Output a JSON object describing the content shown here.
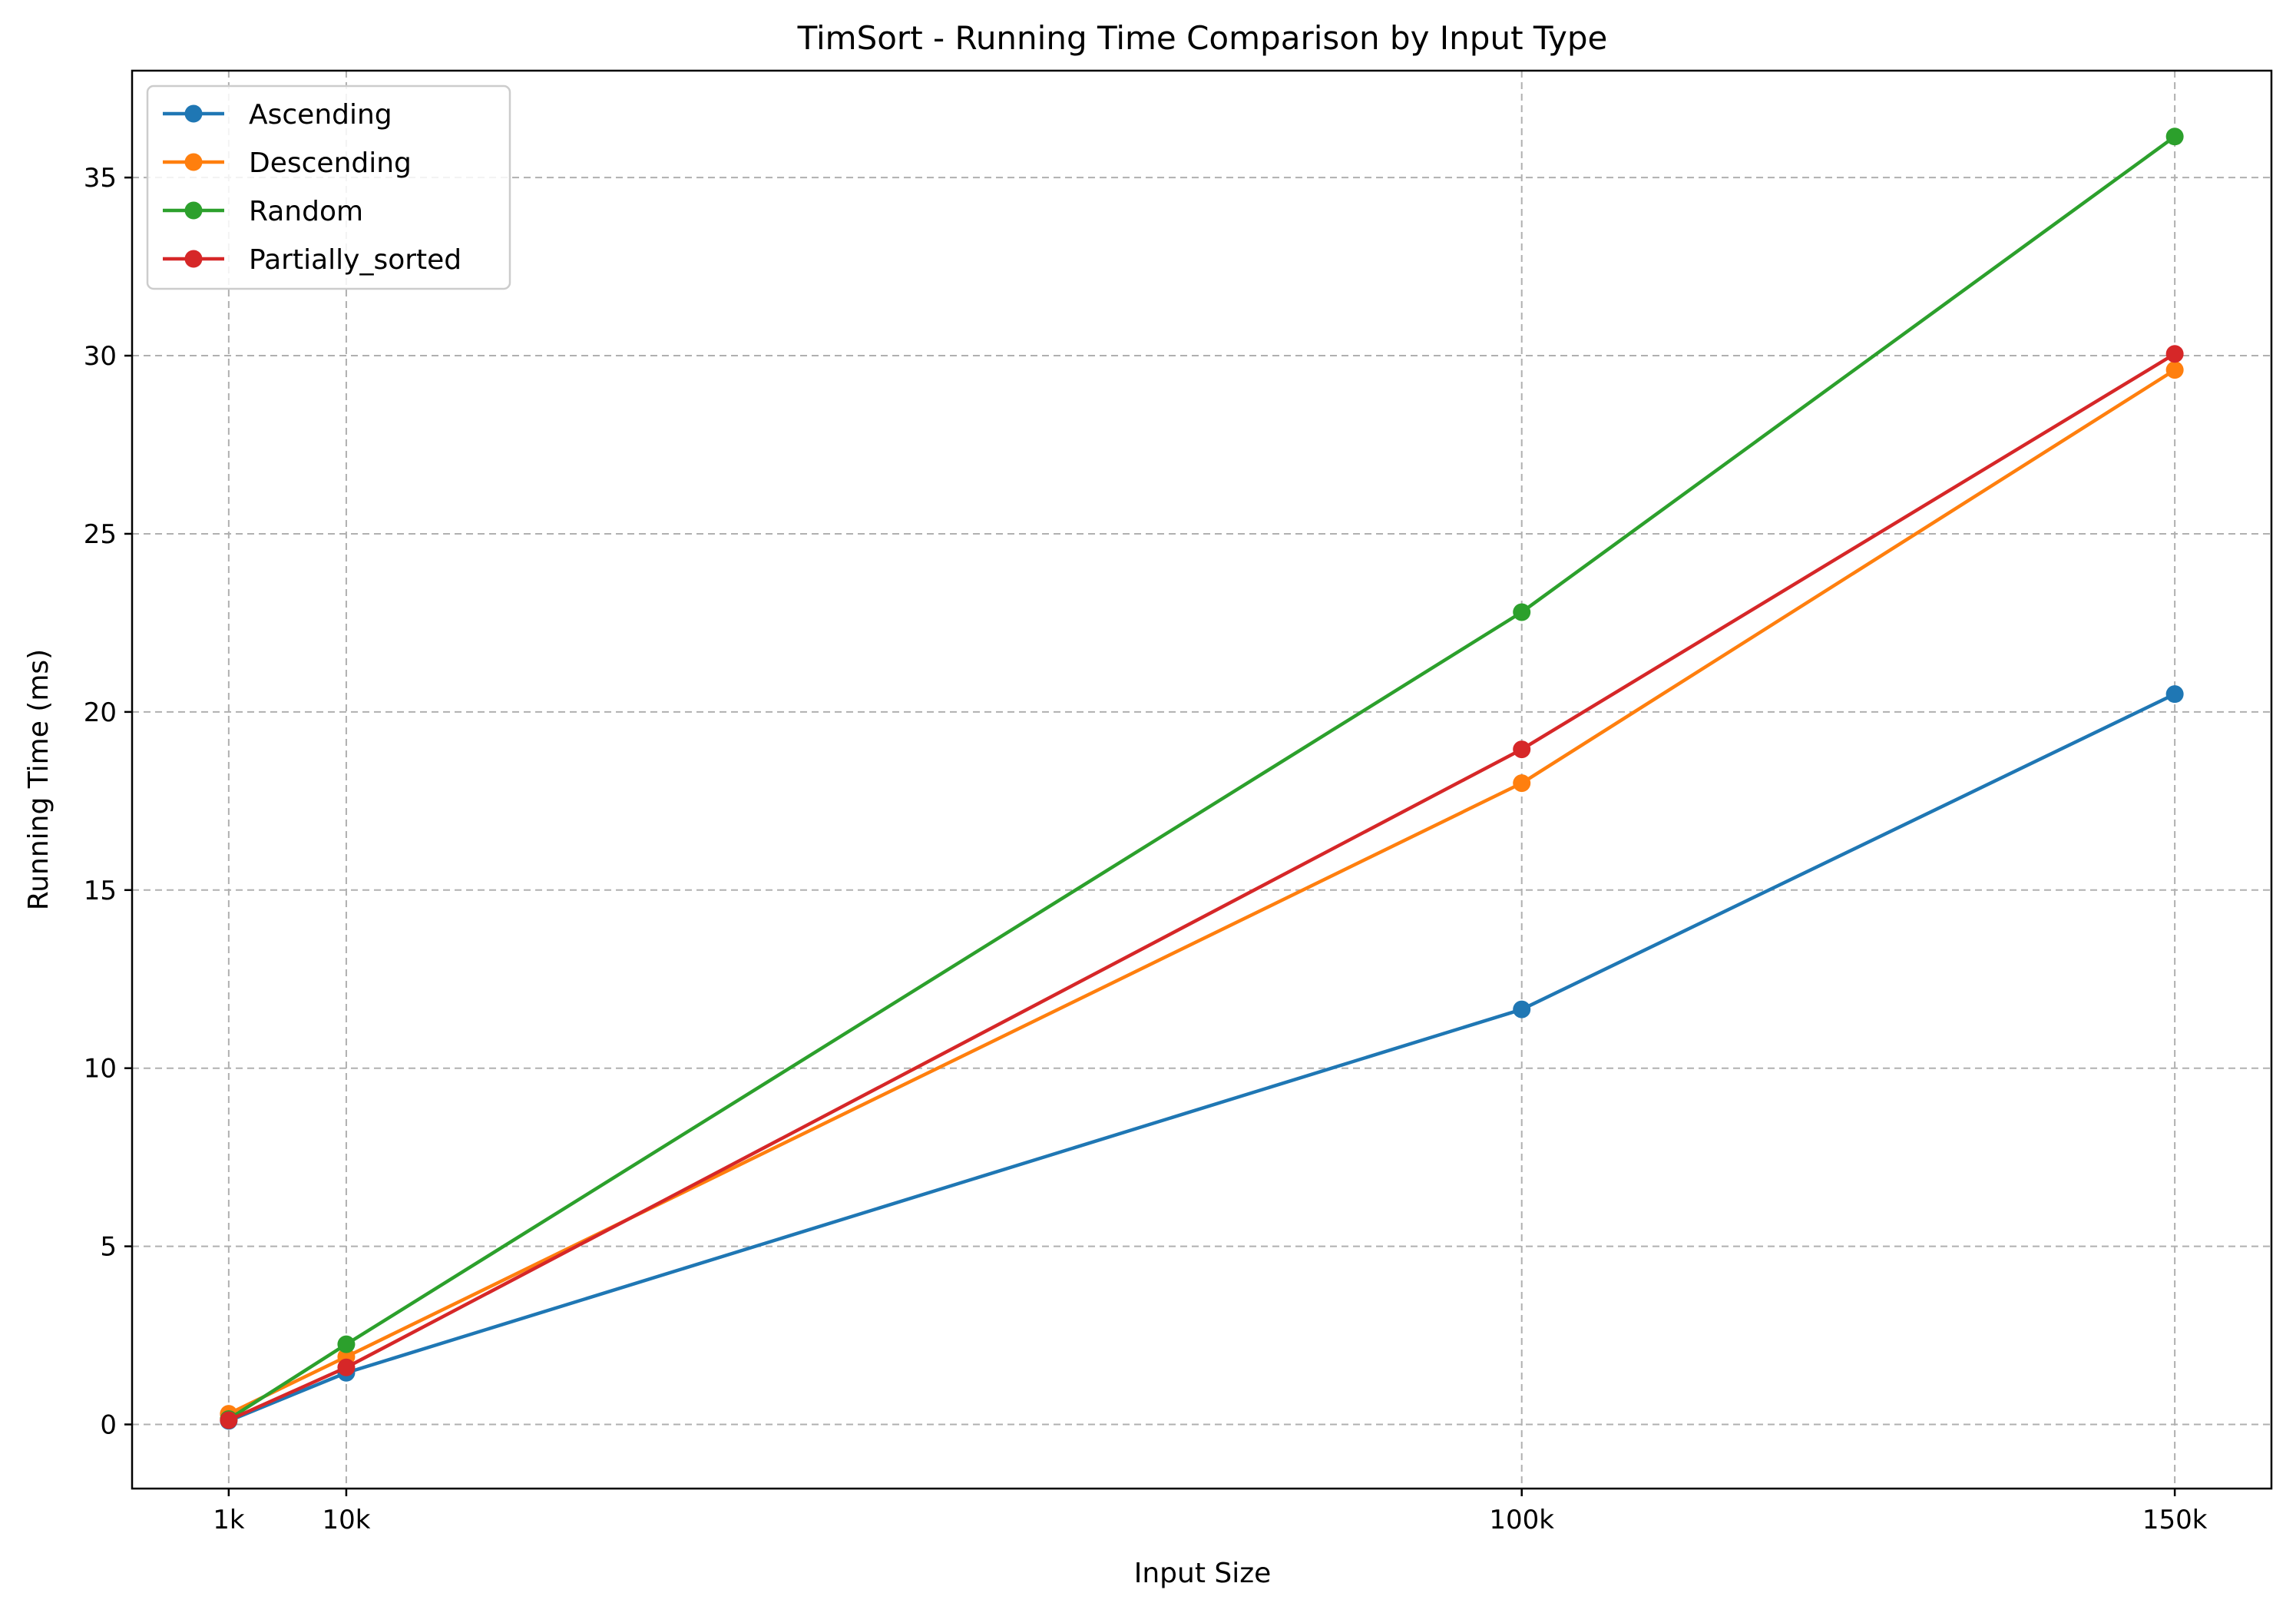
{
  "chart_data": {
    "type": "line",
    "title": "TimSort - Running Time Comparison by Input Type",
    "xlabel": "Input Size",
    "ylabel": "Running Time (ms)",
    "x": [
      1000,
      10000,
      100000,
      150000
    ],
    "xtick_labels": [
      "1k",
      "10k",
      "100k",
      "150k"
    ],
    "yticks": [
      0,
      5,
      10,
      15,
      20,
      25,
      30,
      35
    ],
    "xlim": [
      -6400,
      157400
    ],
    "ylim": [
      -1.8,
      38.0
    ],
    "grid": true,
    "legend_position": "top-left",
    "series": [
      {
        "name": "Ascending",
        "color": "#1f77b4",
        "values": [
          0.1,
          1.45,
          11.65,
          20.5
        ]
      },
      {
        "name": "Descending",
        "color": "#ff7f0e",
        "values": [
          0.3,
          1.9,
          18.0,
          29.6
        ]
      },
      {
        "name": "Random",
        "color": "#2ca02c",
        "values": [
          0.15,
          2.25,
          22.8,
          36.15
        ]
      },
      {
        "name": "Partially_sorted",
        "color": "#d62728",
        "values": [
          0.12,
          1.6,
          18.95,
          30.05
        ]
      }
    ]
  }
}
